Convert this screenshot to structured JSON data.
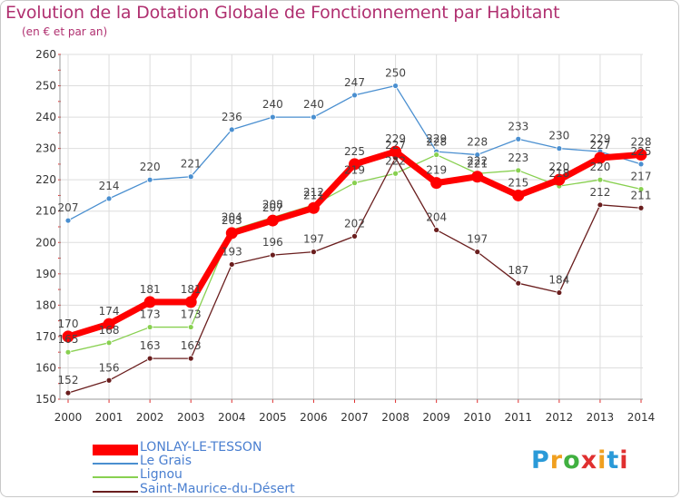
{
  "chart_data": {
    "type": "line",
    "title": "Evolution de la Dotation Globale de Fonctionnement par Habitant",
    "subtitle": "(en € et par an)",
    "x": [
      "2000",
      "2001",
      "2002",
      "2003",
      "2004",
      "2005",
      "2006",
      "2007",
      "2008",
      "2009",
      "2010",
      "2011",
      "2012",
      "2013",
      "2014"
    ],
    "ylim": [
      150,
      260
    ],
    "yticks": [
      150,
      160,
      170,
      180,
      190,
      200,
      210,
      220,
      230,
      240,
      250,
      260
    ],
    "grid": true,
    "legend_position": "bottom-left",
    "series": [
      {
        "name": "LONLAY-LE-TESSON",
        "color": "#ff0000",
        "values": [
          170,
          174,
          181,
          181,
          203,
          207,
          211,
          225,
          229,
          219,
          221,
          215,
          220,
          227,
          228
        ]
      },
      {
        "name": "Le Grais",
        "color": "#4a8fd0",
        "values": [
          207,
          214,
          220,
          221,
          236,
          240,
          240,
          247,
          250,
          229,
          228,
          233,
          230,
          229,
          225
        ]
      },
      {
        "name": "Lignou",
        "color": "#88d050",
        "values": [
          165,
          168,
          173,
          173,
          204,
          208,
          212,
          219,
          222,
          228,
          222,
          223,
          218,
          220,
          217
        ]
      },
      {
        "name": "Saint-Maurice-du-Désert",
        "color": "#6a1e1e",
        "values": [
          152,
          156,
          163,
          163,
          193,
          196,
          197,
          202,
          227,
          204,
          197,
          187,
          184,
          212,
          211
        ]
      }
    ]
  },
  "logo_text": "Proxiti"
}
